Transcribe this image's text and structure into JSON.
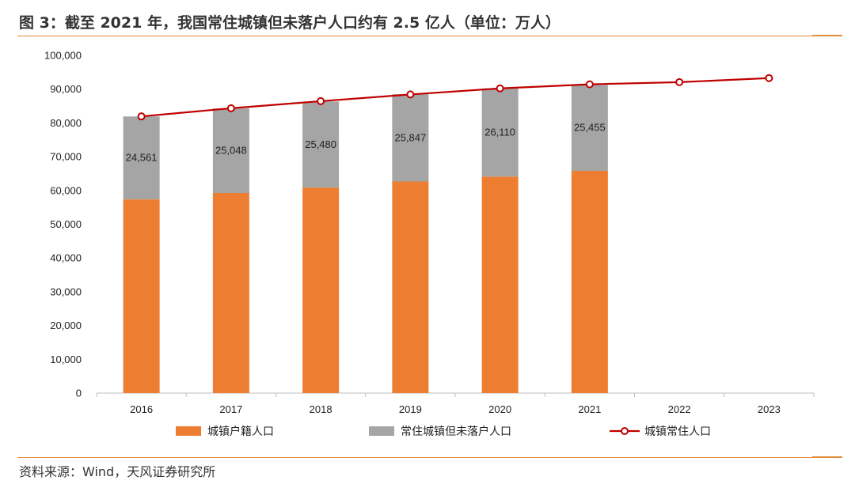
{
  "header": {
    "title": "图 3：截至 2021 年，我国常住城镇但未落户人口约有 2.5 亿人（单位：万人）"
  },
  "footer": {
    "source": "资料来源：Wind，天风证券研究所"
  },
  "colors": {
    "orange": "#ED7D31",
    "gray": "#A5A5A5",
    "line": "#C00000",
    "accent_rule": "#E08A3A"
  },
  "chart_data": {
    "type": "bar",
    "title": "",
    "xlabel": "",
    "ylabel": "",
    "ylim": [
      0,
      100000
    ],
    "yticks": [
      "0",
      "10,000",
      "20,000",
      "30,000",
      "40,000",
      "50,000",
      "60,000",
      "70,000",
      "80,000",
      "90,000",
      "100,000"
    ],
    "ytick_values": [
      0,
      10000,
      20000,
      30000,
      40000,
      50000,
      60000,
      70000,
      80000,
      90000,
      100000
    ],
    "categories": [
      "2016",
      "2017",
      "2018",
      "2019",
      "2020",
      "2021",
      "2022",
      "2023"
    ],
    "series": [
      {
        "name": "城镇户籍人口",
        "kind": "stacked-bar",
        "values": [
          57350,
          59250,
          60850,
          62650,
          64100,
          65800,
          null,
          null
        ]
      },
      {
        "name": "常住城镇但未落户人口",
        "kind": "stacked-bar",
        "values": [
          24561,
          25048,
          25480,
          25847,
          26110,
          25455,
          null,
          null
        ],
        "labels": [
          "24,561",
          "25,048",
          "25,480",
          "25,847",
          "26,110",
          "25,455",
          null,
          null
        ]
      },
      {
        "name": "城镇常住人口",
        "kind": "line-marker",
        "values": [
          81924,
          84343,
          86433,
          88426,
          90220,
          91425,
          92071,
          93267
        ]
      }
    ],
    "legend_position": "bottom"
  }
}
